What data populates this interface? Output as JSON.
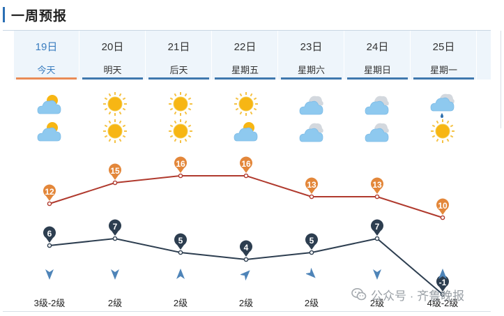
{
  "header": {
    "title": "一周预报"
  },
  "days": [
    {
      "date": "19日",
      "name": "今天",
      "icon_day": "partly-cloudy-icon",
      "icon_night": "partly-cloudy-icon",
      "wind_dir": "north",
      "wind_level": "3级-2级"
    },
    {
      "date": "20日",
      "name": "明天",
      "icon_day": "sunny-icon",
      "icon_night": "sunny-icon",
      "wind_dir": "north",
      "wind_level": "2级"
    },
    {
      "date": "21日",
      "name": "后天",
      "icon_day": "sunny-icon",
      "icon_night": "sunny-icon",
      "wind_dir": "south",
      "wind_level": "2级"
    },
    {
      "date": "22日",
      "name": "星期五",
      "icon_day": "sunny-icon",
      "icon_night": "partly-cloudy-icon",
      "wind_dir": "southwest",
      "wind_level": "2级"
    },
    {
      "date": "23日",
      "name": "星期六",
      "icon_day": "cloudy-icon",
      "icon_night": "cloudy-icon",
      "wind_dir": "northwest",
      "wind_level": "2级"
    },
    {
      "date": "24日",
      "name": "星期日",
      "icon_day": "cloudy-icon",
      "icon_night": "cloudy-icon",
      "wind_dir": "north",
      "wind_level": "2级"
    },
    {
      "date": "25日",
      "name": "星期一",
      "icon_day": "rain-icon",
      "icon_night": "sunny-icon",
      "wind_dir": "south",
      "wind_level": "4级-2级"
    }
  ],
  "chart_data": {
    "type": "line",
    "categories": [
      "19日",
      "20日",
      "21日",
      "22日",
      "23日",
      "24日",
      "25日"
    ],
    "series": [
      {
        "values": [
          12,
          15,
          16,
          16,
          13,
          13,
          10
        ],
        "color": "#b03a2e",
        "marker_color": "#e3873a"
      },
      {
        "values": [
          6,
          7,
          5,
          4,
          5,
          7,
          -1
        ],
        "color": "#2d3e50",
        "marker_color": "#2d3e50"
      }
    ]
  },
  "watermark": {
    "text": "公众号 · 齐鲁晚报"
  },
  "colors": {
    "accent": "#2a6fb4",
    "today": "#e98b56",
    "high": "#b03a2e",
    "low": "#2d3e50"
  }
}
